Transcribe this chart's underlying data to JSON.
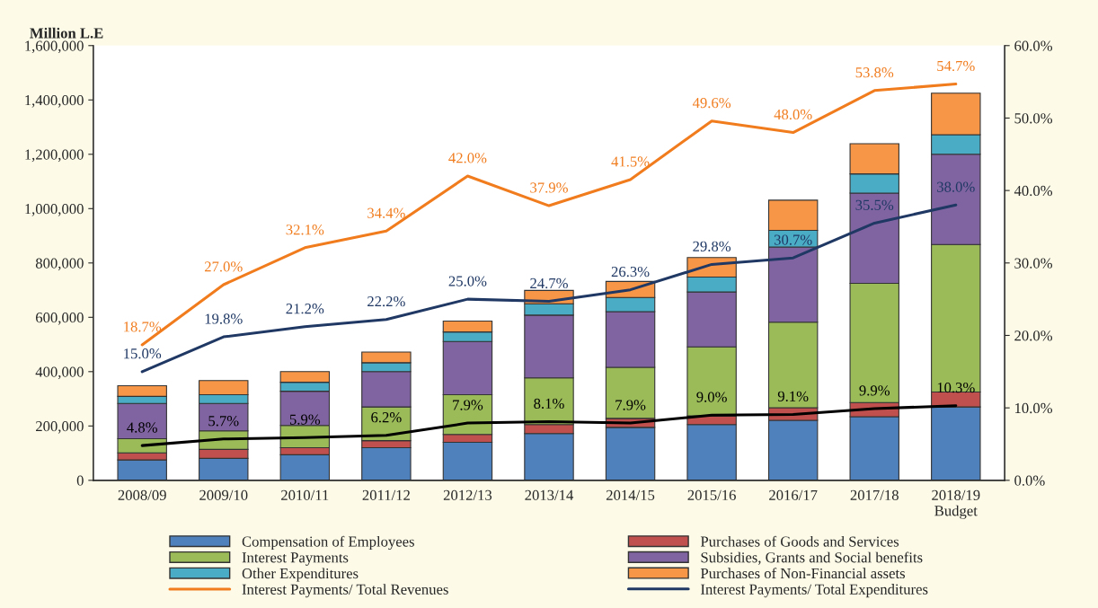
{
  "chart_data": {
    "type": "bar",
    "stacked": true,
    "ylabel": "Million L.E",
    "categories": [
      "2008/09",
      "2009/10",
      "2010/11",
      "2011/12",
      "2012/13",
      "2013/14",
      "2014/15",
      "2015/16",
      "2016/17",
      "2017/18",
      "2018/19\nBudget"
    ],
    "series": [
      {
        "name": "Compensation of Employees",
        "color": "#4f81bd",
        "values": [
          75000,
          81000,
          94000,
          120000,
          140000,
          172000,
          195000,
          205000,
          221000,
          234000,
          270000
        ]
      },
      {
        "name": "Purchases of Goods and Services",
        "color": "#c0504d",
        "values": [
          26000,
          33000,
          26000,
          26000,
          29000,
          33000,
          33000,
          32000,
          46000,
          52000,
          55000
        ]
      },
      {
        "name": "Interest Payments",
        "color": "#9bbb59",
        "values": [
          52000,
          68000,
          82000,
          124000,
          146000,
          172000,
          188000,
          254000,
          315000,
          439000,
          543000
        ]
      },
      {
        "name": "Subsidies, Grants and Social benefits",
        "color": "#8064a2",
        "values": [
          130000,
          101000,
          126000,
          130000,
          196000,
          231000,
          205000,
          202000,
          277000,
          332000,
          332000
        ]
      },
      {
        "name": "Other Expenditures",
        "color": "#4bacc6",
        "values": [
          26000,
          32000,
          33000,
          33000,
          35000,
          42000,
          52000,
          55000,
          61000,
          71000,
          72000
        ]
      },
      {
        "name": "Purchases of Non-Financial assets",
        "color": "#f79646",
        "values": [
          39000,
          52000,
          39000,
          39000,
          40000,
          49000,
          59000,
          72000,
          111000,
          111000,
          153000
        ]
      },
      {
        "name": "Interest Payments/ Total Revenues",
        "type": "line",
        "axis": "y2",
        "color": "#f07c1e",
        "values": [
          18.7,
          27.0,
          32.1,
          34.4,
          42.0,
          37.9,
          41.5,
          49.6,
          48.0,
          53.8,
          54.7
        ],
        "value_labels": [
          "18.7%",
          "27.0%",
          "32.1%",
          "34.4%",
          "42.0%",
          "37.9%",
          "41.5%",
          "49.6%",
          "48.0%",
          "53.8%",
          "54.7%"
        ]
      },
      {
        "name": "Interest Payments/ Total Expenditures",
        "type": "line",
        "axis": "y2",
        "color": "#1f3864",
        "values": [
          15.0,
          19.8,
          21.2,
          22.2,
          25.0,
          24.7,
          26.3,
          29.8,
          30.7,
          35.5,
          38.0
        ],
        "value_labels": [
          "15.0%",
          "19.8%",
          "21.2%",
          "22.2%",
          "25.0%",
          "24.7%",
          "26.3%",
          "29.8%",
          "30.7%",
          "35.5%",
          "38.0%"
        ]
      },
      {
        "type": "line",
        "axis": "y2",
        "color": "#000000",
        "values": [
          4.8,
          5.7,
          5.9,
          6.2,
          7.9,
          8.1,
          7.9,
          9.0,
          9.1,
          9.9,
          10.3
        ],
        "value_labels": [
          "4.8%",
          "5.7%",
          "5.9%",
          "6.2%",
          "7.9%",
          "8.1%",
          "7.9%",
          "9.0%",
          "9.1%",
          "9.9%",
          "10.3%"
        ]
      }
    ],
    "ylim": [
      0,
      1600000
    ],
    "yticks": [
      {
        "value": 0,
        "label": "0"
      },
      {
        "value": 200000,
        "label": "200,000"
      },
      {
        "value": 400000,
        "label": "400,000"
      },
      {
        "value": 600000,
        "label": "600,000"
      },
      {
        "value": 800000,
        "label": "800,000"
      },
      {
        "value": 1000000,
        "label": "1,000,000"
      },
      {
        "value": 1200000,
        "label": "1,200,000"
      },
      {
        "value": 1400000,
        "label": "1,400,000"
      },
      {
        "value": 1600000,
        "label": "1,600,000"
      }
    ],
    "y2lim": [
      0,
      60
    ],
    "y2ticks": [
      {
        "value": 0,
        "label": "0.0%"
      },
      {
        "value": 10,
        "label": "10.0%"
      },
      {
        "value": 20,
        "label": "20.0%"
      },
      {
        "value": 30,
        "label": "30.0%"
      },
      {
        "value": 40,
        "label": "40.0%"
      },
      {
        "value": 50,
        "label": "50.0%"
      },
      {
        "value": 60,
        "label": "60.0%"
      }
    ],
    "grid": false,
    "legend": "bottom"
  }
}
